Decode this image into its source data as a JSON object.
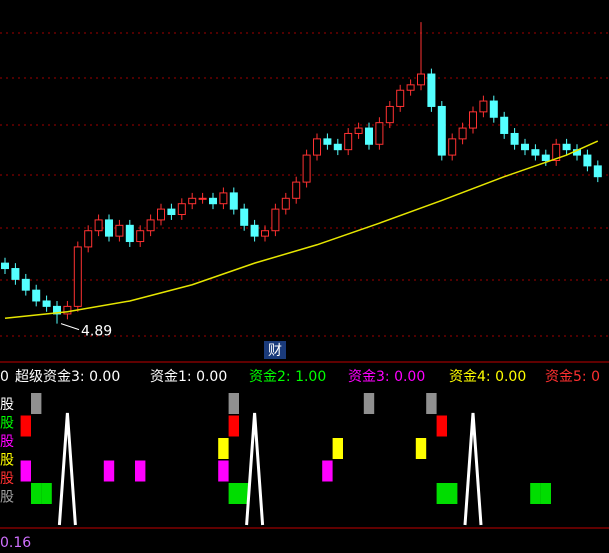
{
  "chart_data": {
    "type": "candlestick",
    "ylim": [
      4.6,
      7.7
    ],
    "open": [
      5.45,
      5.4,
      5.3,
      5.2,
      5.1,
      5.05,
      4.98,
      5.05,
      5.6,
      5.75,
      5.85,
      5.7,
      5.8,
      5.65,
      5.75,
      5.85,
      5.95,
      5.9,
      6.0,
      6.05,
      6.05,
      6.0,
      6.1,
      5.95,
      5.8,
      5.7,
      5.75,
      5.95,
      6.05,
      6.2,
      6.45,
      6.6,
      6.55,
      6.5,
      6.65,
      6.7,
      6.55,
      6.75,
      6.9,
      7.05,
      7.1,
      7.2,
      6.9,
      6.45,
      6.6,
      6.7,
      6.85,
      6.95,
      6.8,
      6.65,
      6.55,
      6.5,
      6.45,
      6.4,
      6.55,
      6.5,
      6.45,
      6.35
    ],
    "high": [
      5.5,
      5.45,
      5.35,
      5.25,
      5.15,
      5.1,
      5.1,
      5.65,
      5.8,
      5.9,
      5.9,
      5.85,
      5.85,
      5.8,
      5.9,
      6.0,
      6.0,
      6.05,
      6.1,
      6.1,
      6.1,
      6.15,
      6.15,
      6.0,
      5.85,
      5.8,
      6.0,
      6.1,
      6.25,
      6.5,
      6.65,
      6.65,
      6.6,
      6.7,
      6.75,
      6.75,
      6.8,
      6.95,
      7.1,
      7.15,
      7.68,
      7.25,
      6.95,
      6.65,
      6.75,
      6.9,
      7.0,
      7.0,
      6.85,
      6.7,
      6.6,
      6.55,
      6.5,
      6.6,
      6.6,
      6.55,
      6.5,
      6.4
    ],
    "low": [
      5.35,
      5.25,
      5.15,
      5.05,
      5.0,
      4.89,
      4.93,
      5.0,
      5.55,
      5.7,
      5.65,
      5.65,
      5.6,
      5.6,
      5.7,
      5.8,
      5.85,
      5.85,
      5.95,
      6.0,
      5.95,
      5.95,
      5.9,
      5.75,
      5.65,
      5.65,
      5.7,
      5.9,
      6.0,
      6.15,
      6.4,
      6.5,
      6.45,
      6.45,
      6.6,
      6.5,
      6.5,
      6.7,
      6.85,
      7.0,
      7.05,
      6.85,
      6.4,
      6.4,
      6.55,
      6.65,
      6.8,
      6.75,
      6.6,
      6.5,
      6.45,
      6.4,
      6.35,
      6.35,
      6.45,
      6.4,
      6.3,
      6.2
    ],
    "close": [
      5.4,
      5.3,
      5.2,
      5.1,
      5.05,
      4.98,
      5.05,
      5.6,
      5.75,
      5.85,
      5.7,
      5.8,
      5.65,
      5.75,
      5.85,
      5.95,
      5.9,
      6.0,
      6.05,
      6.05,
      6.0,
      6.1,
      5.95,
      5.8,
      5.7,
      5.75,
      5.95,
      6.05,
      6.2,
      6.45,
      6.6,
      6.55,
      6.5,
      6.65,
      6.7,
      6.55,
      6.75,
      6.9,
      7.05,
      7.1,
      7.2,
      6.9,
      6.45,
      6.6,
      6.7,
      6.85,
      6.95,
      6.8,
      6.65,
      6.55,
      6.5,
      6.45,
      6.4,
      6.55,
      6.5,
      6.45,
      6.35,
      6.25
    ],
    "ma": {
      "color": "#e6e600",
      "x": [
        0,
        6,
        12,
        18,
        24,
        30,
        36,
        42,
        48,
        54,
        57
      ],
      "values": [
        4.94,
        5.0,
        5.1,
        5.25,
        5.45,
        5.62,
        5.82,
        6.03,
        6.25,
        6.45,
        6.58
      ]
    },
    "low_annotation": "4.89",
    "marker_label": "财",
    "legend": [
      {
        "text": "0",
        "color": "#ffffff"
      },
      {
        "text": "超级资金3: 0.00",
        "color": "#ffffff"
      },
      {
        "text": "资金1: 0.00",
        "color": "#ffffff"
      },
      {
        "text": "资金2: 1.00",
        "color": "#00ff00"
      },
      {
        "text": "资金3: 0.00",
        "color": "#ff00ff"
      },
      {
        "text": "资金4: 0.00",
        "color": "#ffff00"
      },
      {
        "text": "资金5: 0",
        "color": "#ff3030"
      }
    ],
    "row_labels": [
      {
        "text": "股",
        "color": "#ffffff"
      },
      {
        "text": "股",
        "color": "#00ff00"
      },
      {
        "text": "股",
        "color": "#ff00ff"
      },
      {
        "text": "股",
        "color": "#ffff00"
      },
      {
        "text": "股",
        "color": "#ff3030"
      },
      {
        "text": "股",
        "color": "#a0a0a0"
      }
    ],
    "signals": [
      {
        "color": "#909090",
        "x": [
          3,
          22,
          35,
          41
        ]
      },
      {
        "color": "#ff0000",
        "x": [
          2,
          22,
          42
        ]
      },
      {
        "color": "#ffff00",
        "x": [
          21,
          32,
          40
        ]
      },
      {
        "color": "#ff00ff",
        "x": [
          2,
          10,
          13,
          21,
          31
        ]
      },
      {
        "color": "#00dd00",
        "x": [
          3,
          4,
          22,
          23,
          42,
          43,
          51,
          52
        ]
      }
    ],
    "spikes": [
      6,
      24,
      45
    ],
    "bottom_value": "0.16"
  }
}
